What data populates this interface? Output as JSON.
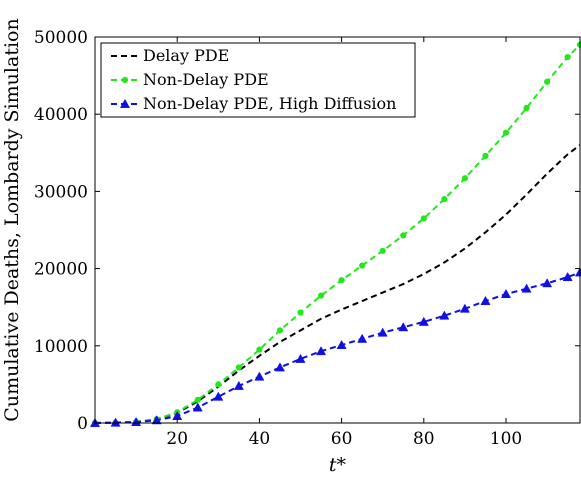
{
  "chart_data": {
    "type": "line",
    "title": "",
    "xlabel": "t*",
    "ylabel": "Cumulative Deaths, Lombardy Simulation",
    "xlim": [
      0,
      118
    ],
    "ylim": [
      0,
      50000
    ],
    "xticks": [
      20,
      40,
      60,
      80,
      100
    ],
    "yticks": [
      0,
      10000,
      20000,
      30000,
      40000,
      50000
    ],
    "xtick_labels": [
      "20",
      "40",
      "60",
      "80",
      "100"
    ],
    "ytick_labels": [
      "0",
      "10000",
      "20000",
      "30000",
      "40000",
      "50000"
    ],
    "grid": false,
    "legend_position": "top-left",
    "series": [
      {
        "name": "Delay PDE",
        "color": "#000000",
        "style": "dashed",
        "marker": "none",
        "x": [
          0,
          5,
          10,
          15,
          20,
          25,
          30,
          35,
          40,
          45,
          50,
          55,
          60,
          65,
          70,
          75,
          80,
          85,
          90,
          95,
          100,
          105,
          110,
          115,
          118
        ],
        "y": [
          0,
          50,
          150,
          500,
          1300,
          2800,
          4700,
          6800,
          8700,
          10500,
          12000,
          13500,
          14700,
          15800,
          16900,
          18000,
          19300,
          20800,
          22600,
          24700,
          27000,
          29600,
          32300,
          34800,
          36000
        ]
      },
      {
        "name": "Non-Delay PDE",
        "color": "#22e81a",
        "style": "dashed",
        "marker": "circle",
        "x": [
          0,
          5,
          10,
          15,
          20,
          25,
          30,
          35,
          40,
          45,
          50,
          55,
          60,
          65,
          70,
          75,
          80,
          85,
          90,
          95,
          100,
          105,
          110,
          115,
          118
        ],
        "y": [
          0,
          50,
          150,
          500,
          1400,
          3000,
          5000,
          7200,
          9500,
          12000,
          14300,
          16500,
          18500,
          20400,
          22300,
          24300,
          26500,
          29000,
          31700,
          34600,
          37600,
          40800,
          44200,
          47400,
          49000
        ]
      },
      {
        "name": "Non-Delay PDE, High Diffusion",
        "color": "#1010e0",
        "style": "dashed",
        "marker": "triangle",
        "x": [
          0,
          5,
          10,
          15,
          20,
          25,
          30,
          35,
          40,
          45,
          50,
          55,
          60,
          65,
          70,
          75,
          80,
          85,
          90,
          95,
          100,
          105,
          110,
          115,
          118
        ],
        "y": [
          0,
          40,
          120,
          350,
          900,
          2000,
          3400,
          4800,
          6000,
          7200,
          8300,
          9300,
          10100,
          10900,
          11700,
          12400,
          13100,
          13900,
          14800,
          15800,
          16700,
          17400,
          18100,
          18900,
          19500
        ]
      }
    ]
  }
}
